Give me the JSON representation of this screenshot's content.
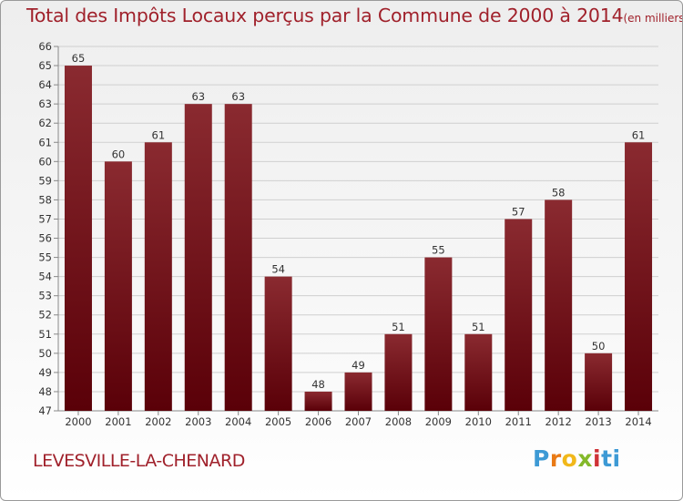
{
  "chart_data": {
    "type": "bar",
    "title": "Total des Impôts Locaux perçus par la Commune de 2000 à 2014",
    "subtitle": "(en milliers d'€)",
    "categories": [
      "2000",
      "2001",
      "2002",
      "2003",
      "2004",
      "2005",
      "2006",
      "2007",
      "2008",
      "2009",
      "2010",
      "2011",
      "2012",
      "2013",
      "2014"
    ],
    "values": [
      65,
      60,
      61,
      63,
      63,
      54,
      48,
      49,
      51,
      55,
      51,
      57,
      58,
      50,
      61
    ],
    "ylim": [
      47,
      66
    ],
    "ytick_step": 1,
    "xlabel": "",
    "ylabel": "",
    "grid": true,
    "bar_color_light": "#8a2a30",
    "bar_color_dark": "#5a0008"
  },
  "commune_name": "LEVESVILLE-LA-CHENARD",
  "logo": {
    "letters": [
      "P",
      "r",
      "o",
      "x",
      "i",
      "ti"
    ]
  }
}
